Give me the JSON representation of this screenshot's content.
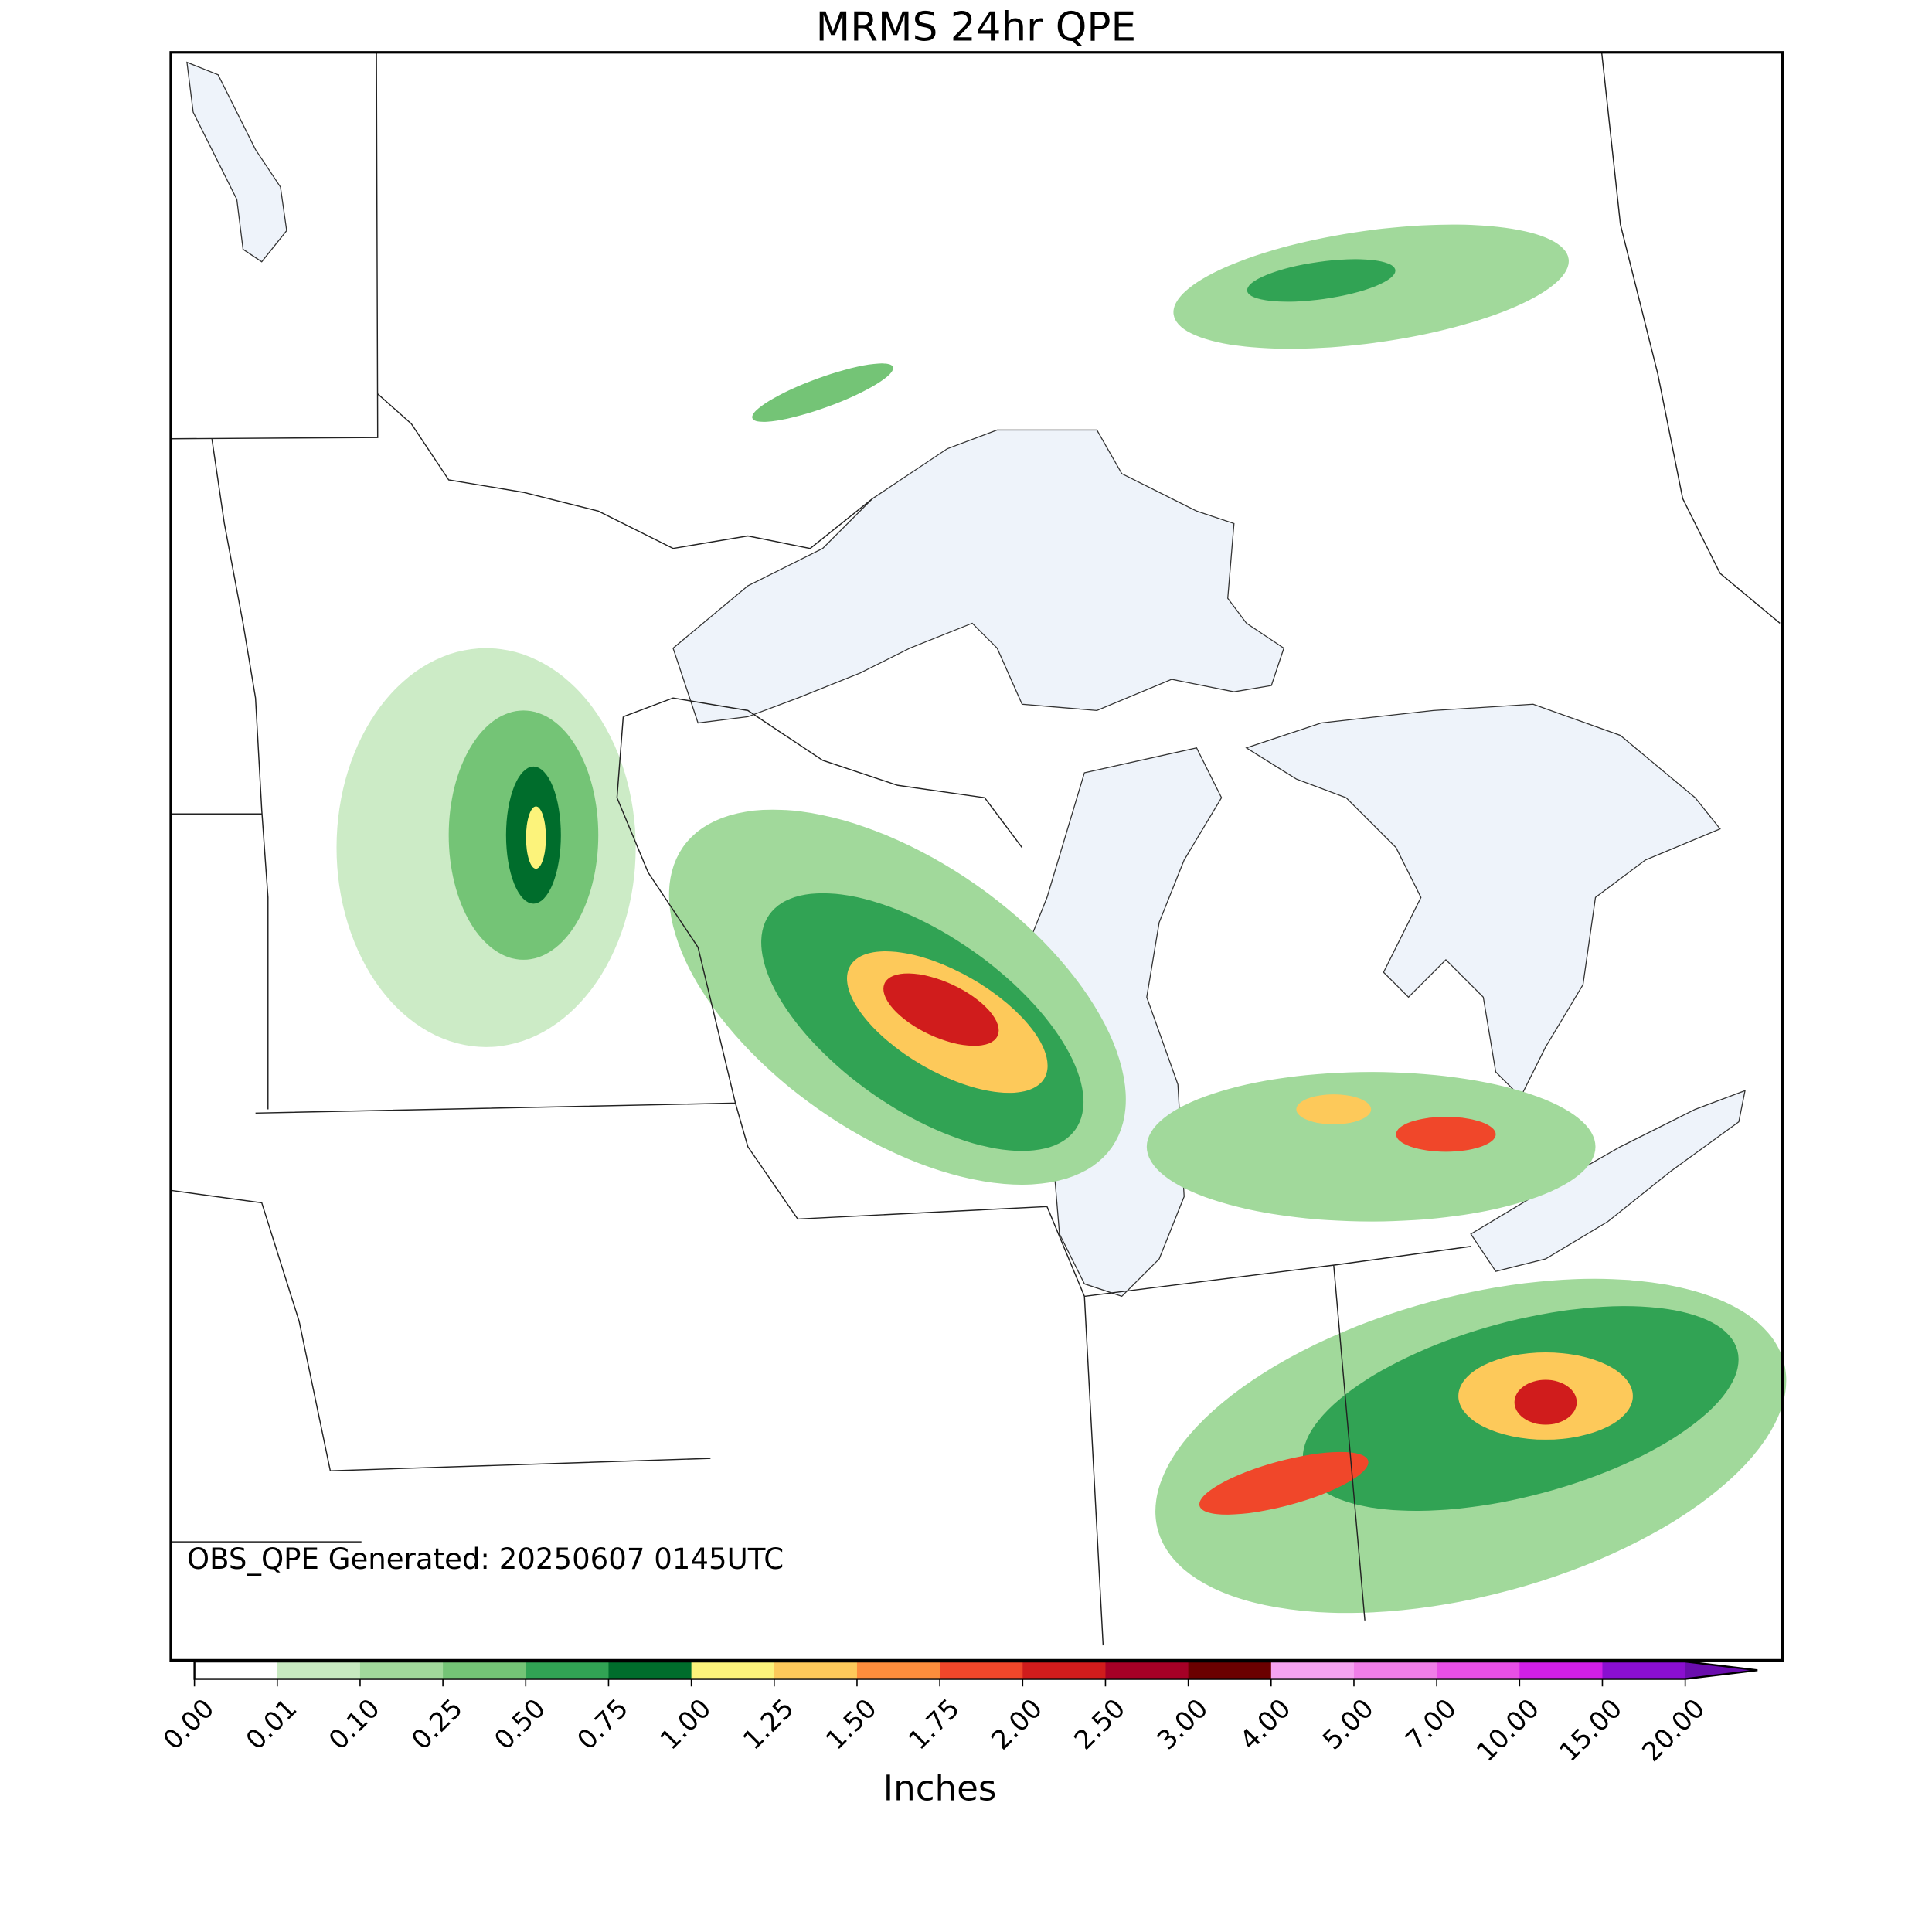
{
  "chart_data": {
    "type": "map",
    "title": "MRMS 24hr QPE",
    "annotation": "OBS_QPE Generated: 20250607 0145UTC",
    "colorbar": {
      "label": "Inches",
      "ticks": [
        {
          "value": 0,
          "label": "0.00"
        },
        {
          "value": 0.01,
          "label": "0.01"
        },
        {
          "value": 0.1,
          "label": "0.10"
        },
        {
          "value": 0.25,
          "label": "0.25"
        },
        {
          "value": 0.5,
          "label": "0.50"
        },
        {
          "value": 0.75,
          "label": "0.75"
        },
        {
          "value": 1,
          "label": "1.00"
        },
        {
          "value": 1.25,
          "label": "1.25"
        },
        {
          "value": 1.5,
          "label": "1.50"
        },
        {
          "value": 1.75,
          "label": "1.75"
        },
        {
          "value": 2,
          "label": "2.00"
        },
        {
          "value": 2.5,
          "label": "2.50"
        },
        {
          "value": 3,
          "label": "3.00"
        },
        {
          "value": 4,
          "label": "4.00"
        },
        {
          "value": 5,
          "label": "5.00"
        },
        {
          "value": 7,
          "label": "7.00"
        },
        {
          "value": 10,
          "label": "10.00"
        },
        {
          "value": 15,
          "label": "15.00"
        },
        {
          "value": 20,
          "label": "20.00"
        }
      ],
      "colors": [
        "#ffffff",
        "#c7e9c0",
        "#a1d99b",
        "#74c476",
        "#31a354",
        "#006d2c",
        "#fcf37b",
        "#fdc95a",
        "#fd8d3c",
        "#f0472a",
        "#d01c1c",
        "#a50026",
        "#6b0000",
        "#f5a3f0",
        "#f07ee8",
        "#e84fe6",
        "#d11fe6",
        "#8a0fd0"
      ],
      "extend_color": "#6a0dad"
    }
  }
}
